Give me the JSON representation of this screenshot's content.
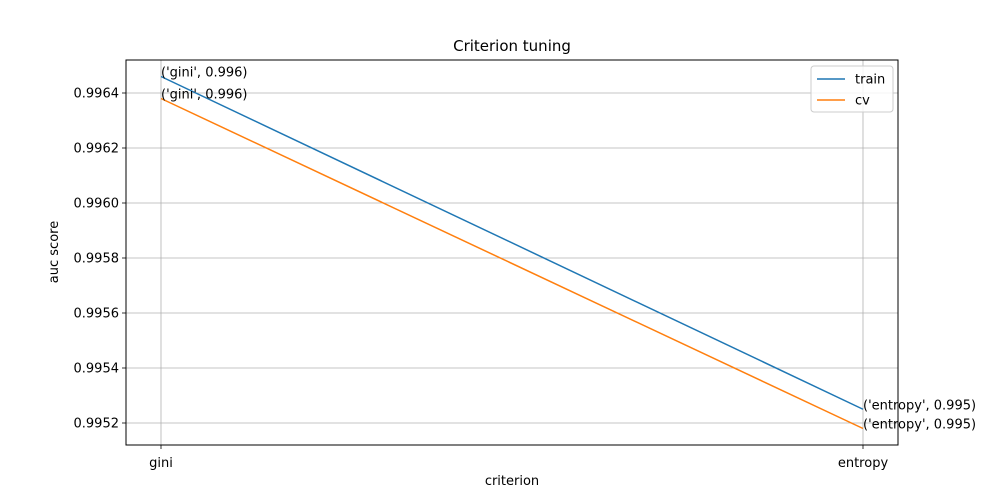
{
  "chart_data": {
    "type": "line",
    "title": "Criterion tuning",
    "xlabel": "criterion",
    "ylabel": "auc score",
    "categories": [
      "gini",
      "entropy"
    ],
    "series": [
      {
        "name": "train",
        "color": "#1f77b4",
        "values": [
          0.99646,
          0.99525
        ],
        "labels": [
          "('gini', 0.996)",
          "('entropy', 0.995)"
        ]
      },
      {
        "name": "cv",
        "color": "#ff7f0e",
        "values": [
          0.99638,
          0.99518
        ],
        "labels": [
          "('gini', 0.996)",
          "('entropy', 0.995)"
        ]
      }
    ],
    "ylim": [
      0.99512,
      0.99652
    ],
    "yticks": [
      0.9952,
      0.9954,
      0.9956,
      0.9958,
      0.996,
      0.9962,
      0.9964
    ],
    "ytick_labels": [
      "0.9952",
      "0.9954",
      "0.9956",
      "0.9958",
      "0.9960",
      "0.9962",
      "0.9964"
    ],
    "grid": true,
    "legend_position": "top-right"
  }
}
